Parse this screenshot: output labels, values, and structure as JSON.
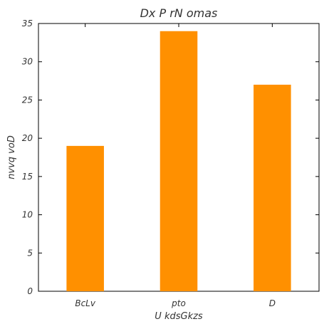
{
  "chart_data": {
    "type": "bar",
    "title": "Dx P rN omas",
    "xlabel": "U  kdsGkzs",
    "ylabel": "nvvq voD",
    "categories": [
      "BcLv",
      "pto",
      "D"
    ],
    "values": [
      19,
      34,
      27
    ],
    "ylim": [
      0,
      35
    ],
    "yticks": [
      0,
      5,
      10,
      15,
      20,
      25,
      30,
      35
    ],
    "bar_color": "#ff9000",
    "grid": false,
    "legend": "none"
  }
}
